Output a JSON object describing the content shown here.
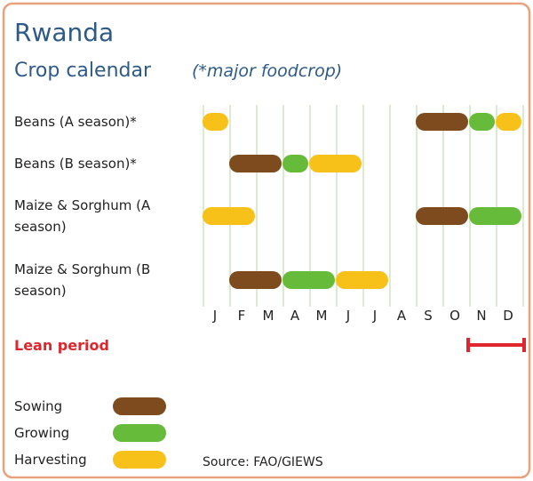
{
  "title": "Rwanda",
  "subtitle": "Crop calendar",
  "note": "(*major foodcrop)",
  "months": [
    "J",
    "F",
    "M",
    "A",
    "M",
    "J",
    "J",
    "A",
    "S",
    "O",
    "N",
    "D"
  ],
  "crops": [
    {
      "label": [
        "Beans (A season)*"
      ],
      "phases": [
        {
          "stage": 2,
          "start": 0,
          "end": 1
        },
        {
          "stage": 0,
          "start": 8,
          "end": 10
        },
        {
          "stage": 1,
          "start": 10,
          "end": 11
        },
        {
          "stage": 2,
          "start": 11,
          "end": 12
        }
      ]
    },
    {
      "label": [
        "Beans (B season)*"
      ],
      "phases": [
        {
          "stage": 0,
          "start": 1,
          "end": 3
        },
        {
          "stage": 1,
          "start": 3,
          "end": 4
        },
        {
          "stage": 2,
          "start": 4,
          "end": 6
        }
      ]
    },
    {
      "label": [
        "Maize & Sorghum (A",
        "season)"
      ],
      "phases": [
        {
          "stage": 2,
          "start": 0,
          "end": 2
        },
        {
          "stage": 0,
          "start": 8,
          "end": 10
        },
        {
          "stage": 1,
          "start": 10,
          "end": 12
        }
      ]
    },
    {
      "label": [
        "Maize & Sorghum (B",
        "season)"
      ],
      "phases": [
        {
          "stage": 0,
          "start": 1,
          "end": 3
        },
        {
          "stage": 1,
          "start": 3,
          "end": 5
        },
        {
          "stage": 2,
          "start": 5,
          "end": 7
        }
      ]
    }
  ],
  "lean_period": {
    "label": "Lean period",
    "start": 10,
    "end": 12,
    "color": "#e0262d"
  },
  "legend": [
    {
      "label": "Sowing",
      "color": "#7d4b1e"
    },
    {
      "label": "Growing",
      "color": "#66bb3a"
    },
    {
      "label": "Harvesting",
      "color": "#f7c11a"
    }
  ],
  "source": "Source: FAO/GIEWS"
}
